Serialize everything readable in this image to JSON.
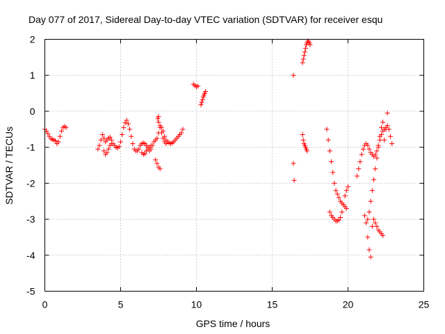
{
  "chart_data": {
    "type": "scatter",
    "title": "Day 077 of 2017, Sidereal Day-to-day VTEC variation (SDTVAR) for receiver esqu",
    "xlabel": "GPS time / hours",
    "ylabel": "SDTVAR / TECUs",
    "xlim": [
      0,
      25
    ],
    "ylim": [
      -5,
      2
    ],
    "xticks": [
      0,
      5,
      10,
      15,
      20,
      25
    ],
    "yticks": [
      -5,
      -4,
      -3,
      -2,
      -1,
      0,
      1,
      2
    ],
    "xtick_labels": [
      "0",
      "5",
      "10",
      "15",
      "20",
      "25"
    ],
    "ytick_labels": [
      "-5",
      "-4",
      "-3",
      "-2",
      "-1",
      "0",
      "1",
      "2"
    ],
    "grid": true,
    "marker": "+",
    "color": "#ff0000",
    "series": [
      {
        "x": [
          0.0,
          0.1,
          0.2,
          0.3,
          0.4,
          0.5,
          0.6,
          0.7,
          0.8,
          0.9,
          1.0,
          1.1,
          1.2,
          1.3,
          1.4,
          3.5,
          3.6,
          3.7,
          3.8,
          3.9,
          4.0,
          4.1,
          4.2,
          4.3,
          4.4,
          4.5,
          4.6,
          4.7,
          4.8,
          4.9,
          5.0,
          5.1,
          5.2,
          5.3,
          5.4,
          5.5,
          5.6,
          5.7,
          5.8,
          5.9,
          6.0,
          6.1,
          6.2,
          6.3,
          6.4,
          6.5,
          6.6,
          6.7,
          6.8,
          6.9,
          7.0,
          7.1,
          7.2,
          7.3,
          7.4,
          7.5,
          7.6,
          7.7,
          7.8,
          7.9,
          8.0,
          8.1,
          8.2,
          8.3,
          8.4,
          8.5,
          8.6,
          8.7,
          8.8,
          8.9,
          9.0,
          9.1,
          3.9,
          4.0,
          4.1,
          4.2,
          4.3,
          4.4,
          6.4,
          6.5,
          6.6,
          6.7,
          6.8,
          6.9,
          7.0,
          7.3,
          7.4,
          7.5,
          7.6,
          7.5,
          7.45,
          7.5,
          7.6,
          7.7,
          7.8,
          7.9,
          8.0,
          9.8,
          9.9,
          10.0,
          10.1,
          10.3,
          10.35,
          10.4,
          10.45,
          10.5,
          10.55,
          10.6,
          16.4,
          16.4,
          16.45,
          17.0,
          17.05,
          17.1,
          17.15,
          17.2,
          17.25,
          17.3,
          17.35,
          17.4,
          17.45,
          17.5,
          17.0,
          17.05,
          17.1,
          17.15,
          17.2,
          17.25,
          17.3,
          18.6,
          18.7,
          18.8,
          18.9,
          19.0,
          19.1,
          19.2,
          19.3,
          19.4,
          19.5,
          19.6,
          19.7,
          19.8,
          19.9,
          18.8,
          18.9,
          19.0,
          19.1,
          19.2,
          19.3,
          19.4,
          19.5,
          19.6,
          19.7,
          19.8,
          19.9,
          20.0,
          20.6,
          20.7,
          20.8,
          20.9,
          21.0,
          21.1,
          21.2,
          21.3,
          21.4,
          21.5,
          21.6,
          21.7,
          21.8,
          21.9,
          22.0,
          22.1,
          22.2,
          22.3,
          22.4,
          22.5,
          22.6,
          22.7,
          22.8,
          22.9,
          21.1,
          21.2,
          21.3,
          21.4,
          21.5,
          21.6,
          21.7,
          21.8,
          21.9,
          22.0,
          22.1,
          22.2,
          22.3,
          21.3,
          21.4,
          21.5,
          21.6,
          21.7,
          21.8,
          21.9,
          22.0,
          22.1,
          22.2,
          22.3,
          22.4,
          22.5,
          22.6
        ],
        "y": [
          -0.5,
          -0.55,
          -0.62,
          -0.7,
          -0.76,
          -0.78,
          -0.8,
          -0.82,
          -0.9,
          -0.85,
          -0.7,
          -0.55,
          -0.45,
          -0.42,
          -0.45,
          -1.05,
          -0.95,
          -0.8,
          -0.65,
          -0.75,
          -0.85,
          -0.8,
          -0.75,
          -0.72,
          -0.8,
          -0.9,
          -0.95,
          -1.0,
          -1.02,
          -0.98,
          -0.85,
          -0.65,
          -0.45,
          -0.32,
          -0.25,
          -0.35,
          -0.5,
          -0.7,
          -0.9,
          -1.05,
          -1.1,
          -1.1,
          -1.05,
          -0.95,
          -0.9,
          -0.88,
          -0.9,
          -0.95,
          -1.0,
          -1.1,
          -1.05,
          -0.95,
          -0.85,
          -0.8,
          -0.75,
          -0.6,
          -0.4,
          -0.45,
          -0.55,
          -0.7,
          -0.8,
          -0.85,
          -0.88,
          -0.9,
          -0.88,
          -0.85,
          -0.8,
          -0.75,
          -0.7,
          -0.65,
          -0.6,
          -0.5,
          -1.1,
          -1.2,
          -1.15,
          -1.05,
          -0.95,
          -0.9,
          -1.15,
          -1.2,
          -1.18,
          -1.1,
          -1.05,
          -1.0,
          -0.95,
          -1.35,
          -1.45,
          -1.55,
          -1.6,
          -0.15,
          -0.2,
          -0.3,
          -0.45,
          -0.6,
          -0.75,
          -0.85,
          -0.9,
          0.75,
          0.72,
          0.68,
          0.7,
          0.18,
          0.25,
          0.32,
          0.4,
          0.45,
          0.5,
          0.55,
          1.0,
          -1.45,
          -1.92,
          1.35,
          1.45,
          1.55,
          1.65,
          1.75,
          1.85,
          1.9,
          1.95,
          1.95,
          1.9,
          1.85,
          -0.65,
          -0.8,
          -0.9,
          -0.95,
          -1.0,
          -1.05,
          -1.1,
          -0.5,
          -0.8,
          -1.1,
          -1.4,
          -1.7,
          -2.0,
          -2.2,
          -2.3,
          -2.4,
          -2.5,
          -2.55,
          -2.6,
          -2.65,
          -2.7,
          -2.8,
          -2.9,
          -2.95,
          -3.0,
          -3.05,
          -3.05,
          -3.02,
          -2.95,
          -2.8,
          -2.6,
          -2.35,
          -2.2,
          -2.1,
          -1.8,
          -1.6,
          -1.4,
          -1.2,
          -1.05,
          -0.95,
          -0.9,
          -0.95,
          -1.05,
          -1.15,
          -1.2,
          -1.25,
          -1.2,
          -1.1,
          -0.95,
          -0.8,
          -0.65,
          -0.55,
          -0.5,
          -0.45,
          -0.4,
          -0.5,
          -0.7,
          -0.9,
          -2.9,
          -3.1,
          -3.0,
          -2.8,
          -2.5,
          -2.2,
          -1.9,
          -1.6,
          -1.3,
          -1.0,
          -0.7,
          -0.45,
          -0.3,
          -3.5,
          -3.85,
          -4.05,
          -3.2,
          -3.0,
          -3.1,
          -3.2,
          -3.3,
          -3.35,
          -3.4,
          -3.45,
          -0.8,
          -0.5,
          -0.05
        ]
      }
    ]
  }
}
